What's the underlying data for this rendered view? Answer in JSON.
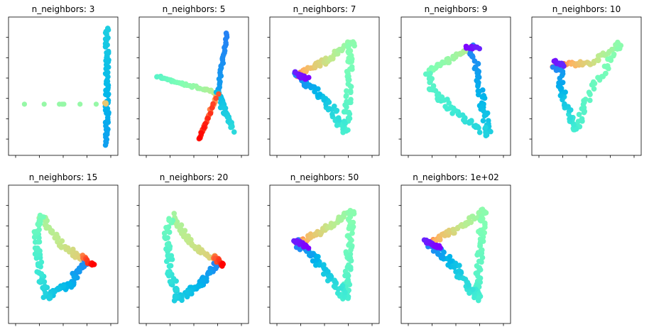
{
  "chart_data": [
    {
      "type": "scatter",
      "title": "n_neighbors: 3",
      "shape": "n3"
    },
    {
      "type": "scatter",
      "title": "n_neighbors: 5",
      "shape": "n5"
    },
    {
      "type": "scatter",
      "title": "n_neighbors: 7",
      "shape": "tri_right"
    },
    {
      "type": "scatter",
      "title": "n_neighbors: 9",
      "shape": "n9"
    },
    {
      "type": "scatter",
      "title": "n_neighbors: 10",
      "shape": "n10"
    },
    {
      "type": "scatter",
      "title": "n_neighbors: 15",
      "shape": "loop_left"
    },
    {
      "type": "scatter",
      "title": "n_neighbors: 20",
      "shape": "loop_left"
    },
    {
      "type": "scatter",
      "title": "n_neighbors: 50",
      "shape": "tri_right"
    },
    {
      "type": "scatter",
      "title": "n_neighbors: 1e+02",
      "shape": "tri_right"
    }
  ],
  "colormap": [
    "#8000ff",
    "#3d60fb",
    "#00b5eb",
    "#40ecd4",
    "#80ffb4",
    "#c0eb8d",
    "#ffb360",
    "#ff0000"
  ]
}
